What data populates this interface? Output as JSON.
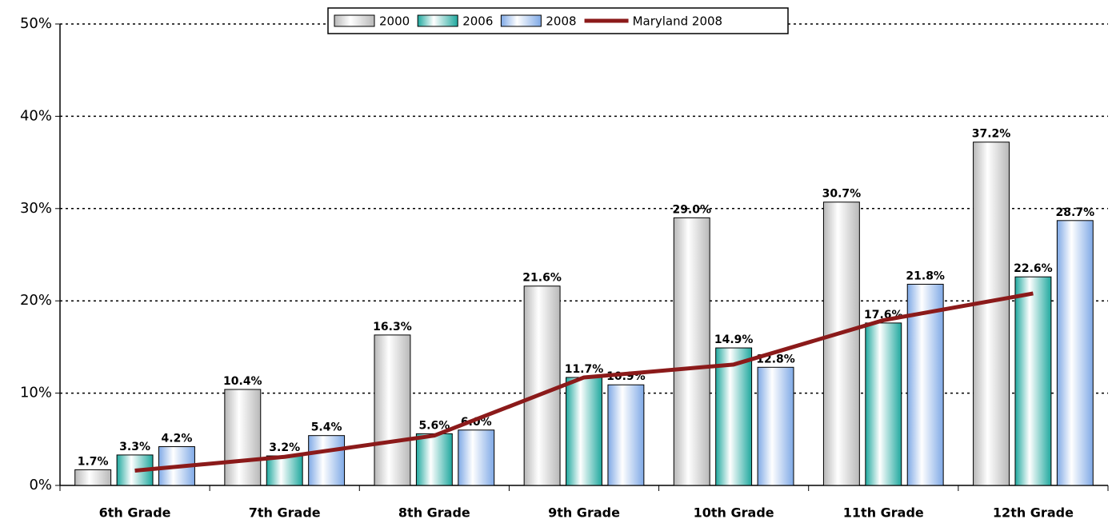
{
  "chart_data": {
    "type": "bar",
    "categories": [
      "6th Grade",
      "7th Grade",
      "8th Grade",
      "9th Grade",
      "10th Grade",
      "11th Grade",
      "12th Grade"
    ],
    "series": [
      {
        "name": "2000",
        "color": "#b8b8b8",
        "values": [
          1.7,
          10.4,
          16.3,
          21.6,
          29.0,
          30.7,
          37.2
        ],
        "value_labels": [
          "1.7%",
          "10.4%",
          "16.3%",
          "21.6%",
          "29.0%",
          "30.7%",
          "37.2%"
        ]
      },
      {
        "name": "2006",
        "color": "#1fa89e",
        "values": [
          3.3,
          3.2,
          5.6,
          11.7,
          14.9,
          17.6,
          22.6
        ],
        "value_labels": [
          "3.3%",
          "3.2%",
          "5.6%",
          "11.7%",
          "14.9%",
          "17.6%",
          "22.6%"
        ]
      },
      {
        "name": "2008",
        "color": "#7fa9e6",
        "values": [
          4.2,
          5.4,
          6.0,
          10.9,
          12.8,
          21.8,
          28.7
        ],
        "value_labels": [
          "4.2%",
          "5.4%",
          "6.0%",
          "10.9%",
          "12.8%",
          "21.8%",
          "28.7%"
        ]
      },
      {
        "name": "Maryland 2008",
        "type": "line",
        "color": "#8b1a1a",
        "values": [
          1.6,
          3.1,
          5.4,
          11.7,
          13.1,
          17.9,
          20.8
        ]
      }
    ],
    "ylim": [
      0,
      50
    ],
    "yticks": [
      {
        "value": 0,
        "label": "0%"
      },
      {
        "value": 10,
        "label": "10%"
      },
      {
        "value": 20,
        "label": "20%"
      },
      {
        "value": 30,
        "label": "30%"
      },
      {
        "value": 40,
        "label": "40%"
      },
      {
        "value": 50,
        "label": "50%"
      }
    ],
    "grid": true,
    "legend": "top"
  }
}
